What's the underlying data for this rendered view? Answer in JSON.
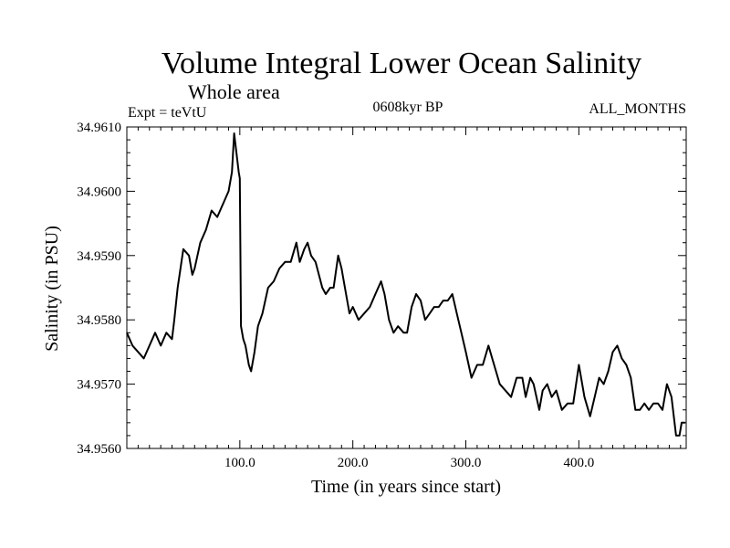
{
  "chart_data": {
    "type": "line",
    "title": "Volume Integral Lower Ocean Salinity",
    "subtitle": "Whole area",
    "expt_label": "Expt = teVtU",
    "period_label": "0608kyr BP",
    "months_label": "ALL_MONTHS",
    "xlabel": "Time (in years since start)",
    "ylabel": "Salinity (in PSU)",
    "xlim": [
      0,
      495
    ],
    "ylim": [
      34.956,
      34.961
    ],
    "x_ticks": [
      100,
      200,
      300,
      400
    ],
    "x_tick_labels": [
      "100.0",
      "200.0",
      "300.0",
      "400.0"
    ],
    "y_ticks": [
      34.956,
      34.957,
      34.958,
      34.959,
      34.96,
      34.961
    ],
    "y_tick_labels": [
      "34.9560",
      "34.9570",
      "34.9580",
      "34.9590",
      "34.9600",
      "34.9610"
    ],
    "grid": false,
    "series": [
      {
        "color": "#000000",
        "points": [
          [
            0,
            34.9578
          ],
          [
            5,
            34.9576
          ],
          [
            10,
            34.9575
          ],
          [
            15,
            34.9574
          ],
          [
            20,
            34.9576
          ],
          [
            25,
            34.9578
          ],
          [
            30,
            34.9576
          ],
          [
            35,
            34.9578
          ],
          [
            40,
            34.9577
          ],
          [
            42,
            34.958
          ],
          [
            45,
            34.9585
          ],
          [
            50,
            34.9591
          ],
          [
            55,
            34.959
          ],
          [
            58,
            34.9587
          ],
          [
            60,
            34.9588
          ],
          [
            65,
            34.9592
          ],
          [
            70,
            34.9594
          ],
          [
            75,
            34.9597
          ],
          [
            80,
            34.9596
          ],
          [
            85,
            34.9598
          ],
          [
            90,
            34.96
          ],
          [
            93,
            34.9603
          ],
          [
            95,
            34.9609
          ],
          [
            97,
            34.9606
          ],
          [
            99,
            34.9603
          ],
          [
            100,
            34.9602
          ],
          [
            101,
            34.9579
          ],
          [
            103,
            34.9577
          ],
          [
            105,
            34.9576
          ],
          [
            108,
            34.9573
          ],
          [
            110,
            34.9572
          ],
          [
            113,
            34.9575
          ],
          [
            116,
            34.9579
          ],
          [
            120,
            34.9581
          ],
          [
            125,
            34.9585
          ],
          [
            130,
            34.9586
          ],
          [
            135,
            34.9588
          ],
          [
            140,
            34.9589
          ],
          [
            145,
            34.9589
          ],
          [
            150,
            34.9592
          ],
          [
            153,
            34.9589
          ],
          [
            157,
            34.9591
          ],
          [
            160,
            34.9592
          ],
          [
            163,
            34.959
          ],
          [
            167,
            34.9589
          ],
          [
            170,
            34.9587
          ],
          [
            173,
            34.9585
          ],
          [
            176,
            34.9584
          ],
          [
            180,
            34.9585
          ],
          [
            183,
            34.9585
          ],
          [
            187,
            34.959
          ],
          [
            190,
            34.9588
          ],
          [
            193,
            34.9585
          ],
          [
            197,
            34.9581
          ],
          [
            200,
            34.9582
          ],
          [
            205,
            34.958
          ],
          [
            210,
            34.9581
          ],
          [
            215,
            34.9582
          ],
          [
            220,
            34.9584
          ],
          [
            225,
            34.9586
          ],
          [
            228,
            34.9584
          ],
          [
            232,
            34.958
          ],
          [
            236,
            34.9578
          ],
          [
            240,
            34.9579
          ],
          [
            245,
            34.9578
          ],
          [
            248,
            34.9578
          ],
          [
            252,
            34.9582
          ],
          [
            256,
            34.9584
          ],
          [
            260,
            34.9583
          ],
          [
            264,
            34.958
          ],
          [
            268,
            34.9581
          ],
          [
            272,
            34.9582
          ],
          [
            276,
            34.9582
          ],
          [
            280,
            34.9583
          ],
          [
            284,
            34.9583
          ],
          [
            288,
            34.9584
          ],
          [
            292,
            34.9581
          ],
          [
            296,
            34.9578
          ],
          [
            300,
            34.9575
          ],
          [
            305,
            34.9571
          ],
          [
            310,
            34.9573
          ],
          [
            315,
            34.9573
          ],
          [
            320,
            34.9576
          ],
          [
            325,
            34.9573
          ],
          [
            330,
            34.957
          ],
          [
            335,
            34.9569
          ],
          [
            340,
            34.9568
          ],
          [
            345,
            34.9571
          ],
          [
            350,
            34.9571
          ],
          [
            353,
            34.9568
          ],
          [
            357,
            34.9571
          ],
          [
            360,
            34.957
          ],
          [
            365,
            34.9566
          ],
          [
            368,
            34.9569
          ],
          [
            372,
            34.957
          ],
          [
            376,
            34.9568
          ],
          [
            380,
            34.9569
          ],
          [
            385,
            34.9566
          ],
          [
            390,
            34.9567
          ],
          [
            395,
            34.9567
          ],
          [
            400,
            34.9573
          ],
          [
            405,
            34.9568
          ],
          [
            410,
            34.9565
          ],
          [
            414,
            34.9568
          ],
          [
            418,
            34.9571
          ],
          [
            422,
            34.957
          ],
          [
            426,
            34.9572
          ],
          [
            430,
            34.9575
          ],
          [
            434,
            34.9576
          ],
          [
            438,
            34.9574
          ],
          [
            442,
            34.9573
          ],
          [
            446,
            34.9571
          ],
          [
            450,
            34.9566
          ],
          [
            454,
            34.9566
          ],
          [
            458,
            34.9567
          ],
          [
            462,
            34.9566
          ],
          [
            466,
            34.9567
          ],
          [
            470,
            34.9567
          ],
          [
            474,
            34.9566
          ],
          [
            478,
            34.957
          ],
          [
            482,
            34.9568
          ],
          [
            486,
            34.9562
          ],
          [
            489,
            34.9562
          ],
          [
            491,
            34.9564
          ],
          [
            494,
            34.9564
          ]
        ]
      }
    ]
  }
}
